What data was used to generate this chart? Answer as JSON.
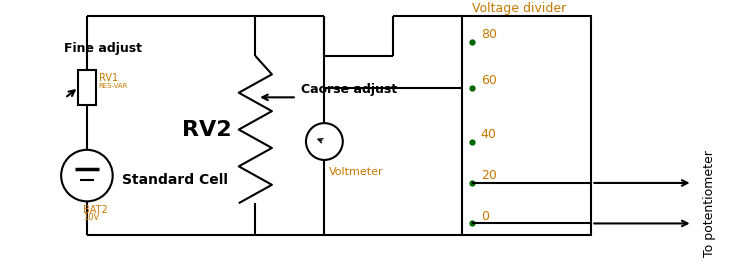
{
  "bg_color": "#ffffff",
  "line_color": "#000000",
  "orange_color": "#c87800",
  "label_fine_adjust": "Fine adjust",
  "label_rv1": "RV1",
  "label_rv1_sub": "RES-VAR",
  "label_rv2": "RV2",
  "label_coarse": "Caorse adjust",
  "label_standard_cell": "Standard Cell",
  "label_bat2": "BAT2",
  "label_bat2_v": "10V",
  "label_voltmeter": "Voltmeter",
  "label_voltage_divider": "Voltage divider",
  "label_to_potentiometer": "To potentiometer",
  "vd_ticks": [
    80,
    60,
    40,
    20,
    0
  ],
  "figsize": [
    7.5,
    2.64
  ],
  "dpi": 100
}
